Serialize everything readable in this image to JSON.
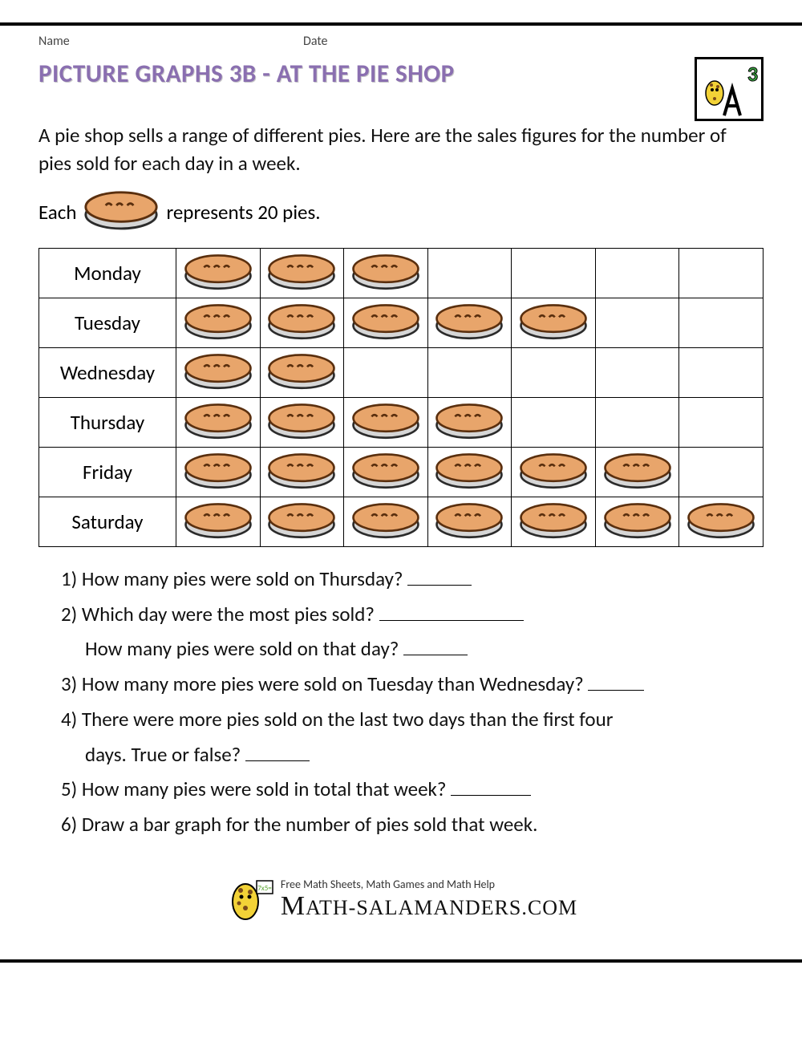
{
  "header": {
    "name_label": "Name",
    "date_label": "Date",
    "grade_badge": "3"
  },
  "title": "PICTURE GRAPHS 3B - AT THE PIE SHOP",
  "intro": "A pie shop sells a range of different pies. Here are the sales figures for the number of pies sold for each day in a week.",
  "key": {
    "prefix": "Each",
    "suffix": "represents 20 pies."
  },
  "pictograph": {
    "type": "pictograph",
    "icon_value": 20,
    "columns": 7,
    "icon_colors": {
      "crust_top": "#e8a56b",
      "crust_stroke": "#5a2f0e",
      "tin": "#d6d6d6",
      "tin_stroke": "#2b2b2b"
    },
    "rows": [
      {
        "label": "Monday",
        "count": 3
      },
      {
        "label": "Tuesday",
        "count": 5
      },
      {
        "label": "Wednesday",
        "count": 2
      },
      {
        "label": "Thursday",
        "count": 4
      },
      {
        "label": "Friday",
        "count": 6
      },
      {
        "label": "Saturday",
        "count": 7
      }
    ]
  },
  "questions": [
    {
      "n": "1)",
      "text": "How many pies were sold on Thursday?",
      "blank_w": 80
    },
    {
      "n": "2)",
      "text": "Which day were the most pies sold?",
      "blank_w": 180,
      "sub": {
        "text": "How many pies were sold on that day?",
        "blank_w": 80
      }
    },
    {
      "n": "3)",
      "text": "How many more pies were sold on Tuesday than Wednesday?",
      "blank_w": 70
    },
    {
      "n": "4)",
      "text": "There were more pies sold on the last two days than the first four",
      "sub": {
        "text": "days. True or false?",
        "blank_w": 80
      }
    },
    {
      "n": "5)",
      "text": "How many pies were sold in total that week?",
      "blank_w": 100
    },
    {
      "n": "6)",
      "text": "Draw a bar graph for the number of pies sold that week."
    }
  ],
  "footer": {
    "tagline": "Free Math Sheets, Math Games and Math Help",
    "site": "ATH-SALAMANDERS.COM"
  },
  "colors": {
    "title": "#8a6fb0",
    "title_shadow": "#c8c8c8",
    "text": "#111111",
    "border": "#000000",
    "background": "#ffffff"
  },
  "typography": {
    "body_fontsize": 25,
    "title_fontsize": 31,
    "header_fontsize": 16
  }
}
